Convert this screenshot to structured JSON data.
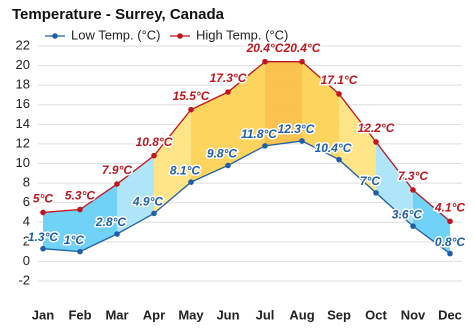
{
  "chart_data": {
    "type": "range-line",
    "title": "Temperature - Surrey, Canada",
    "categories": [
      "Jan",
      "Feb",
      "Mar",
      "Apr",
      "May",
      "Jun",
      "Jul",
      "Aug",
      "Sep",
      "Oct",
      "Nov",
      "Dec"
    ],
    "series": [
      {
        "name": "Low Temp. (°C)",
        "color": "#1f5fa8",
        "values": [
          1.3,
          1,
          2.8,
          4.9,
          8.1,
          9.8,
          11.8,
          12.3,
          10.4,
          7,
          3.6,
          0.8
        ],
        "value_labels": [
          "1.3°C",
          "1°C",
          "2.8°C",
          "4.9°C",
          "8.1°C",
          "9.8°C",
          "11.8°C",
          "12.3°C",
          "10.4°C",
          "7°C",
          "3.6°C",
          "0.8°C"
        ]
      },
      {
        "name": "High Temp. (°C)",
        "color": "#c0151d",
        "values": [
          5,
          5.3,
          7.9,
          10.8,
          15.5,
          17.3,
          20.4,
          20.4,
          17.1,
          12.2,
          7.3,
          4.1
        ],
        "value_labels": [
          "5°C",
          "5.3°C",
          "7.9°C",
          "10.8°C",
          "15.5°C",
          "17.3°C",
          "20.4°C",
          "20.4°C",
          "17.1°C",
          "12.2°C",
          "7.3°C",
          "4.1°C"
        ]
      }
    ],
    "ylim": [
      -2,
      22
    ],
    "yticks": [
      -2,
      0,
      2,
      4,
      6,
      8,
      10,
      12,
      14,
      16,
      18,
      20,
      22
    ],
    "grid": true
  }
}
